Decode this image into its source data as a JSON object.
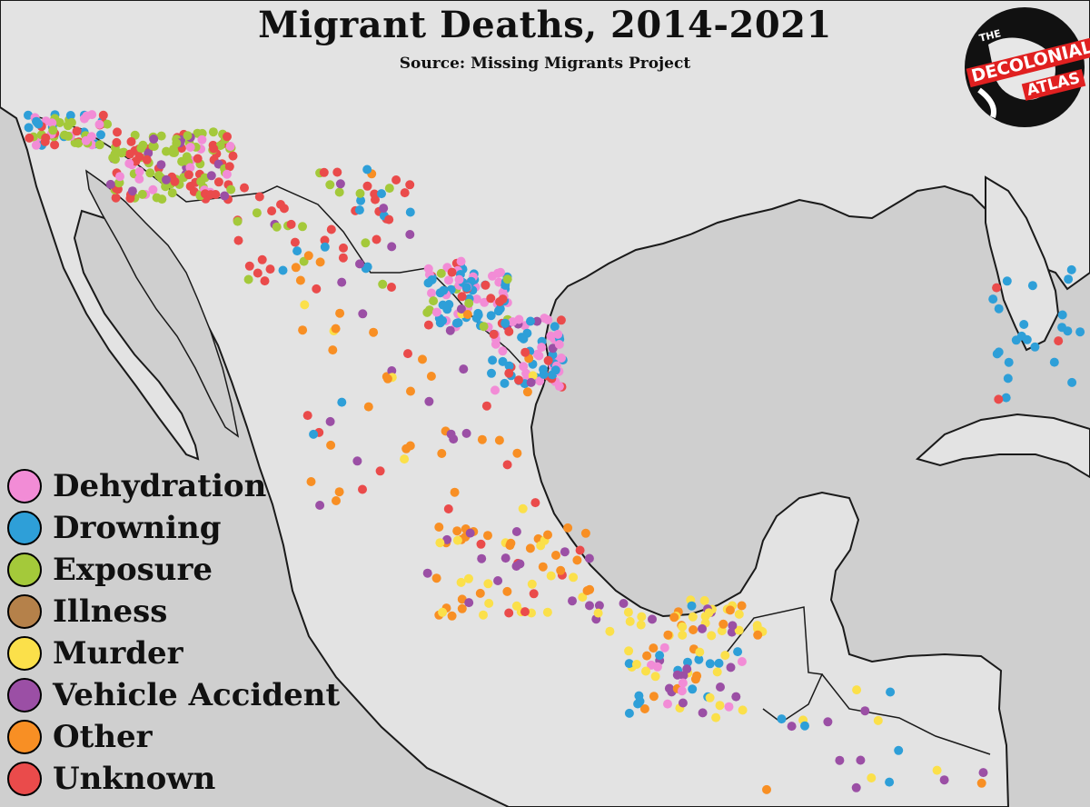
{
  "title": "Migrant Deaths, 2014-2021",
  "subtitle": "Source: Missing Migrants Project",
  "logo": {
    "line1": "THE",
    "line2": "DECOLONIAL",
    "line3": "ATLAS"
  },
  "legend": [
    {
      "key": "dehydration",
      "label": "Dehydration",
      "color": "#f28cd6"
    },
    {
      "key": "drowning",
      "label": "Drowning",
      "color": "#2e9fd8"
    },
    {
      "key": "exposure",
      "label": "Exposure",
      "color": "#a4c93a"
    },
    {
      "key": "illness",
      "label": "Illness",
      "color": "#b5814a"
    },
    {
      "key": "murder",
      "label": "Murder",
      "color": "#fbe04a"
    },
    {
      "key": "vehicle",
      "label": "Vehicle Accident",
      "color": "#9b4fa5"
    },
    {
      "key": "other",
      "label": "Other",
      "color": "#f88f24"
    },
    {
      "key": "unknown",
      "label": "Unknown",
      "color": "#ea4b4b"
    }
  ],
  "colors": {
    "ocean": "#cfcfcf",
    "land": "#e3e3e3",
    "coastline": "#1a1a1a"
  }
}
